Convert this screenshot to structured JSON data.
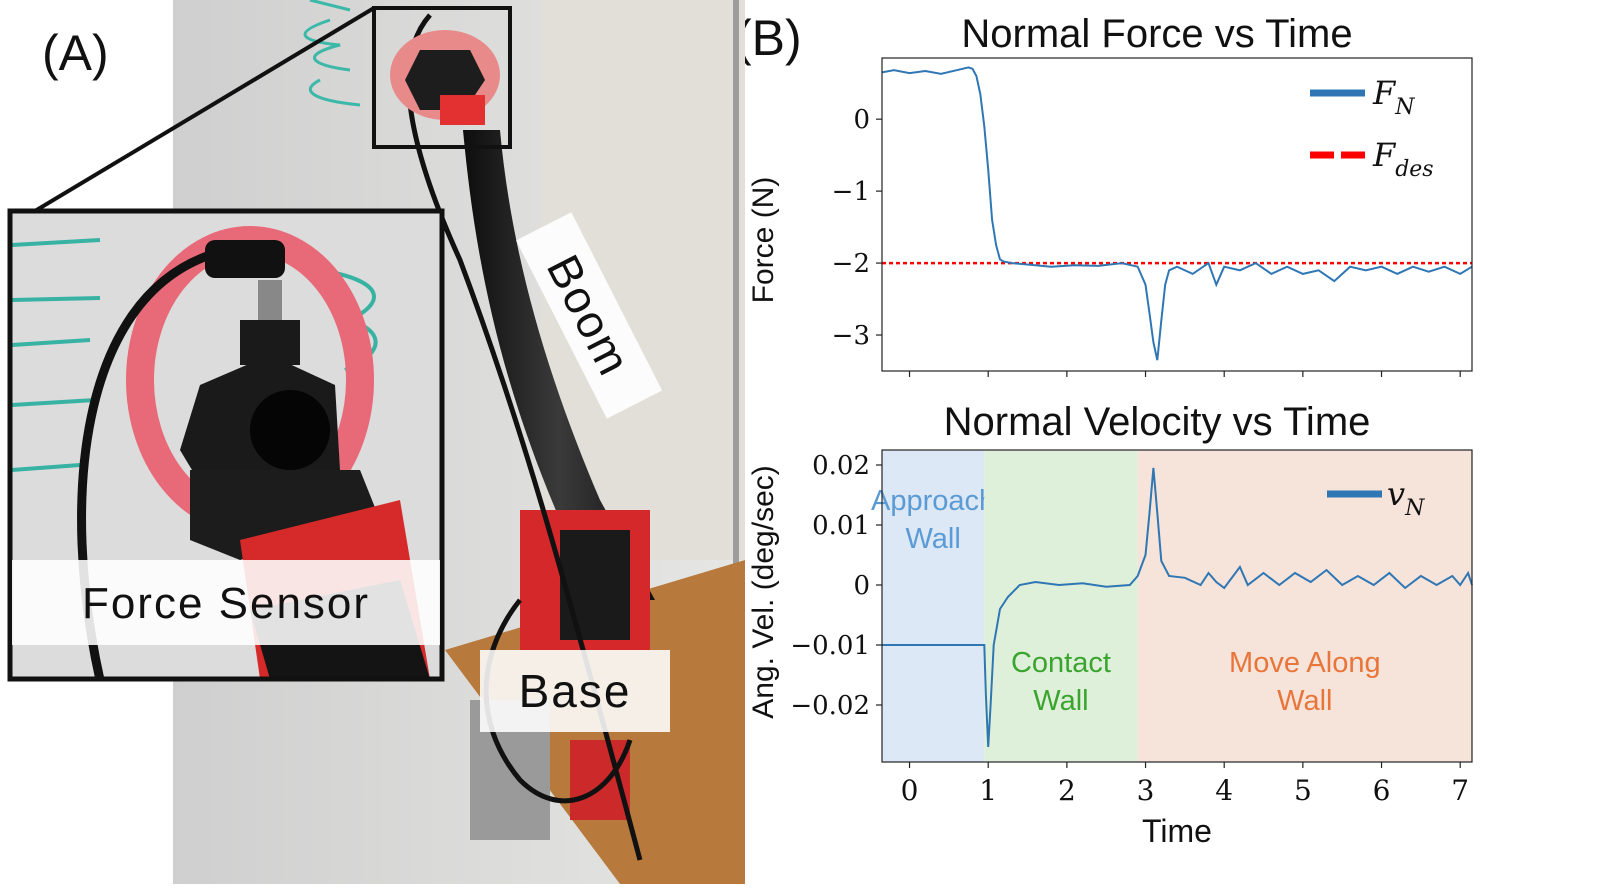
{
  "panel_a": {
    "label": "(A)",
    "callouts": {
      "force_sensor": "Force Sensor",
      "boom": "Boom",
      "base": "Base"
    }
  },
  "panel_b": {
    "label": "(B)"
  },
  "colors": {
    "force_line": "#2f77b4",
    "desired_line": "#ff0000",
    "approach_region": "#dde8f6",
    "contact_region": "#dff0da",
    "move_region": "#f6e3da",
    "approach_text": "#5b9bd5",
    "contact_text": "#3aa52e",
    "move_text": "#e8763a"
  },
  "chart_data": [
    {
      "type": "line",
      "title": "Normal Force vs Time",
      "xlabel": "",
      "ylabel": "Force (N)",
      "xlim": [
        -0.35,
        7.15
      ],
      "ylim": [
        -3.5,
        0.85
      ],
      "yticks": [
        0,
        -1,
        -2,
        -3
      ],
      "ytick_labels": [
        "0",
        "−1",
        "−2",
        "−3"
      ],
      "xticks": [
        0,
        1,
        2,
        3,
        4,
        5,
        6,
        7
      ],
      "show_x_tick_labels": false,
      "series": [
        {
          "name": "F_N",
          "style": "solid",
          "points": [
            [
              -0.35,
              0.65
            ],
            [
              -0.2,
              0.68
            ],
            [
              0,
              0.64
            ],
            [
              0.2,
              0.67
            ],
            [
              0.4,
              0.63
            ],
            [
              0.6,
              0.68
            ],
            [
              0.75,
              0.72
            ],
            [
              0.8,
              0.7
            ],
            [
              0.85,
              0.6
            ],
            [
              0.9,
              0.35
            ],
            [
              0.95,
              -0.1
            ],
            [
              1.0,
              -0.7
            ],
            [
              1.05,
              -1.4
            ],
            [
              1.1,
              -1.75
            ],
            [
              1.15,
              -1.95
            ],
            [
              1.2,
              -1.98
            ],
            [
              1.3,
              -2.0
            ],
            [
              1.5,
              -2.02
            ],
            [
              1.8,
              -2.05
            ],
            [
              2.1,
              -2.03
            ],
            [
              2.4,
              -2.04
            ],
            [
              2.7,
              -2.0
            ],
            [
              2.9,
              -2.05
            ],
            [
              3.0,
              -2.3
            ],
            [
              3.05,
              -2.7
            ],
            [
              3.1,
              -3.1
            ],
            [
              3.15,
              -3.35
            ],
            [
              3.2,
              -2.8
            ],
            [
              3.25,
              -2.3
            ],
            [
              3.3,
              -2.1
            ],
            [
              3.4,
              -2.05
            ],
            [
              3.6,
              -2.15
            ],
            [
              3.8,
              -2.0
            ],
            [
              3.9,
              -2.3
            ],
            [
              4.0,
              -2.05
            ],
            [
              4.2,
              -2.1
            ],
            [
              4.4,
              -2.0
            ],
            [
              4.6,
              -2.15
            ],
            [
              4.8,
              -2.05
            ],
            [
              5.0,
              -2.15
            ],
            [
              5.2,
              -2.1
            ],
            [
              5.4,
              -2.25
            ],
            [
              5.6,
              -2.05
            ],
            [
              5.8,
              -2.1
            ],
            [
              6.0,
              -2.05
            ],
            [
              6.2,
              -2.15
            ],
            [
              6.4,
              -2.05
            ],
            [
              6.6,
              -2.12
            ],
            [
              6.8,
              -2.05
            ],
            [
              7.0,
              -2.15
            ],
            [
              7.15,
              -2.05
            ]
          ]
        },
        {
          "name": "F_des",
          "style": "dashed",
          "points": [
            [
              -0.35,
              -2.0
            ],
            [
              7.15,
              -2.0
            ]
          ]
        }
      ],
      "legend": {
        "position": "top-right",
        "entries": [
          {
            "main": "F",
            "sub": "N"
          },
          {
            "main": "F",
            "sub": "des"
          }
        ]
      }
    },
    {
      "type": "line",
      "title": "Normal Velocity vs Time",
      "xlabel": "Time",
      "ylabel": "Ang. Vel. (deg/sec)",
      "xlim": [
        -0.35,
        7.15
      ],
      "ylim": [
        -0.0295,
        0.0225
      ],
      "yticks": [
        0.02,
        0.01,
        0,
        -0.01,
        -0.02
      ],
      "ytick_labels": [
        "0.02",
        "0.01",
        "0",
        "−0.01",
        "−0.02"
      ],
      "xticks": [
        0,
        1,
        2,
        3,
        4,
        5,
        6,
        7
      ],
      "xtick_labels": [
        "0",
        "1",
        "2",
        "3",
        "4",
        "5",
        "6",
        "7"
      ],
      "regions": [
        {
          "x0": -0.35,
          "x1": 0.95,
          "label_lines": [
            "Approach",
            "Wall"
          ],
          "label_y": 0.0125
        },
        {
          "x0": 0.95,
          "x1": 2.9,
          "label_lines": [
            "Contact",
            "Wall"
          ],
          "label_y": -0.0145
        },
        {
          "x0": 2.9,
          "x1": 7.15,
          "label_lines": [
            "Move Along",
            "Wall"
          ],
          "label_y": -0.0145
        }
      ],
      "series": [
        {
          "name": "v_N",
          "style": "solid",
          "points": [
            [
              -0.35,
              -0.01
            ],
            [
              0.95,
              -0.01
            ],
            [
              0.97,
              -0.018
            ],
            [
              1.0,
              -0.027
            ],
            [
              1.03,
              -0.02
            ],
            [
              1.07,
              -0.01
            ],
            [
              1.15,
              -0.004
            ],
            [
              1.25,
              -0.002
            ],
            [
              1.4,
              0.0
            ],
            [
              1.6,
              0.0005
            ],
            [
              1.9,
              0.0
            ],
            [
              2.2,
              0.0003
            ],
            [
              2.5,
              -0.0003
            ],
            [
              2.8,
              0.0
            ],
            [
              2.9,
              0.0015
            ],
            [
              3.0,
              0.005
            ],
            [
              3.05,
              0.012
            ],
            [
              3.1,
              0.0195
            ],
            [
              3.15,
              0.012
            ],
            [
              3.2,
              0.004
            ],
            [
              3.3,
              0.0015
            ],
            [
              3.5,
              0.0012
            ],
            [
              3.7,
              0.0
            ],
            [
              3.8,
              0.002
            ],
            [
              3.9,
              0.0005
            ],
            [
              4.0,
              -0.0005
            ],
            [
              4.2,
              0.003
            ],
            [
              4.3,
              0.0
            ],
            [
              4.5,
              0.002
            ],
            [
              4.7,
              0.0
            ],
            [
              4.9,
              0.002
            ],
            [
              5.1,
              0.0005
            ],
            [
              5.3,
              0.0025
            ],
            [
              5.5,
              0.0
            ],
            [
              5.7,
              0.0015
            ],
            [
              5.9,
              0.0
            ],
            [
              6.1,
              0.002
            ],
            [
              6.3,
              -0.0005
            ],
            [
              6.5,
              0.0015
            ],
            [
              6.7,
              0.0
            ],
            [
              6.9,
              0.0015
            ],
            [
              7.0,
              0.0
            ],
            [
              7.1,
              0.002
            ],
            [
              7.15,
              0.0
            ]
          ]
        }
      ],
      "legend": {
        "position": "top-right",
        "entries": [
          {
            "main": "v",
            "sub": "N"
          }
        ]
      }
    }
  ]
}
